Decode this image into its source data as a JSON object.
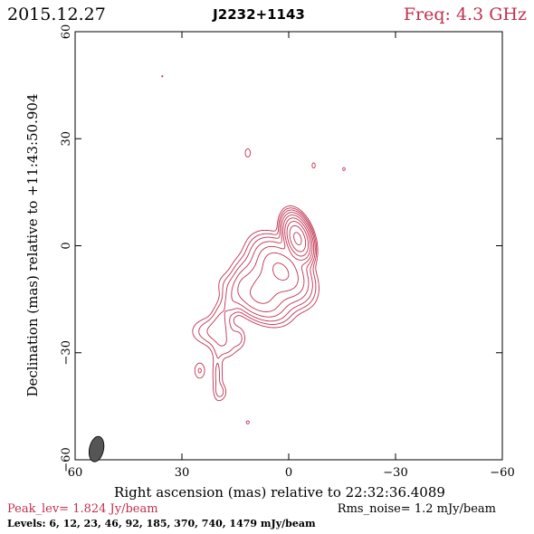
{
  "header": {
    "date": "2015.12.27",
    "source": "J2232+1143",
    "freq": "Freq: 4.3 GHz"
  },
  "footer": {
    "peak": "Peak_lev=  1.824 Jy/beam",
    "rms": "Rms_noise=   1.2 mJy/beam",
    "levels": "Levels:   6,  12,  23,  46,  92, 185, 370, 740, 1479 mJy/beam"
  },
  "colors": {
    "contour": "#c0304e",
    "beam": "#555555"
  },
  "chart_data": {
    "type": "contour",
    "xlabel": "Right ascension (mas) relative to 22:32:36.4089",
    "ylabel": "Declination (mas) relative to +11:43:50.904",
    "xlim": [
      60,
      -60
    ],
    "ylim": [
      -60,
      60
    ],
    "xticks": [
      60,
      30,
      0,
      -30,
      -60
    ],
    "yticks": [
      -60,
      -30,
      0,
      30,
      60
    ],
    "xtick_labels": [
      "60",
      "30",
      "0",
      "−30",
      "−60"
    ],
    "ytick_labels": [
      "−60",
      "−30",
      "0",
      "30",
      "60"
    ],
    "contour_levels_mJy": [
      6,
      12,
      23,
      46,
      92,
      185,
      370,
      740,
      1479
    ],
    "peak_Jy_per_beam": 1.824,
    "rms_mJy_per_beam": 1.2,
    "beam": {
      "ra": 54,
      "dec": -57,
      "major": 3.6,
      "minor": 2.0,
      "angle": -12
    },
    "components": [
      {
        "ra": -2.5,
        "dec": 2,
        "sa": 1.5,
        "sb": 2.8,
        "angle": -18,
        "amp": 1824
      },
      {
        "ra": 2,
        "dec": -7,
        "sa": 2.8,
        "sb": 4.5,
        "angle": -40,
        "amp": 420
      },
      {
        "ra": 7,
        "dec": -12,
        "sa": 3.2,
        "sb": 4.2,
        "angle": -40,
        "amp": 220
      },
      {
        "ra": 10,
        "dec": -15,
        "sa": 2.2,
        "sb": 4.5,
        "angle": -60,
        "amp": 90
      },
      {
        "ra": 13,
        "dec": -11,
        "sa": 1.3,
        "sb": 2.2,
        "angle": 0,
        "amp": 35
      },
      {
        "ra": 16,
        "dec": -16,
        "sa": 1.4,
        "sb": 2.0,
        "angle": 0,
        "amp": 22
      },
      {
        "ra": 19,
        "dec": -20,
        "sa": 1.6,
        "sb": 3.4,
        "angle": 15,
        "amp": 22
      },
      {
        "ra": 21,
        "dec": -24,
        "sa": 3.6,
        "sb": 2.3,
        "angle": 0,
        "amp": 24
      },
      {
        "ra": 18,
        "dec": -28,
        "sa": 2.2,
        "sb": 2.2,
        "angle": 0,
        "amp": 18
      },
      {
        "ra": 14,
        "dec": -26,
        "sa": 1.2,
        "sb": 1.8,
        "angle": 0,
        "amp": 12
      },
      {
        "ra": 20,
        "dec": -36,
        "sa": 1.0,
        "sb": 4.5,
        "angle": 0,
        "amp": 14
      },
      {
        "ra": 19,
        "dec": -41,
        "sa": 1.1,
        "sb": 1.5,
        "angle": 0,
        "amp": 12
      },
      {
        "ra": 25,
        "dec": -35,
        "sa": 1.1,
        "sb": 1.7,
        "angle": 0,
        "amp": 13
      },
      {
        "ra": 11.5,
        "dec": -49.5,
        "sa": 0.6,
        "sb": 0.6,
        "angle": 0,
        "amp": 8
      },
      {
        "ra": 11.5,
        "dec": 26,
        "sa": 0.8,
        "sb": 1.3,
        "angle": 0,
        "amp": 9
      },
      {
        "ra": -7,
        "dec": 22.5,
        "sa": 0.6,
        "sb": 1.0,
        "angle": 0,
        "amp": 8
      },
      {
        "ra": -15.5,
        "dec": 21.5,
        "sa": 0.5,
        "sb": 0.6,
        "angle": 0,
        "amp": 8
      },
      {
        "ra": 35.5,
        "dec": 47.5,
        "sa": 0.4,
        "sb": 0.5,
        "angle": 0,
        "amp": 7
      }
    ]
  }
}
